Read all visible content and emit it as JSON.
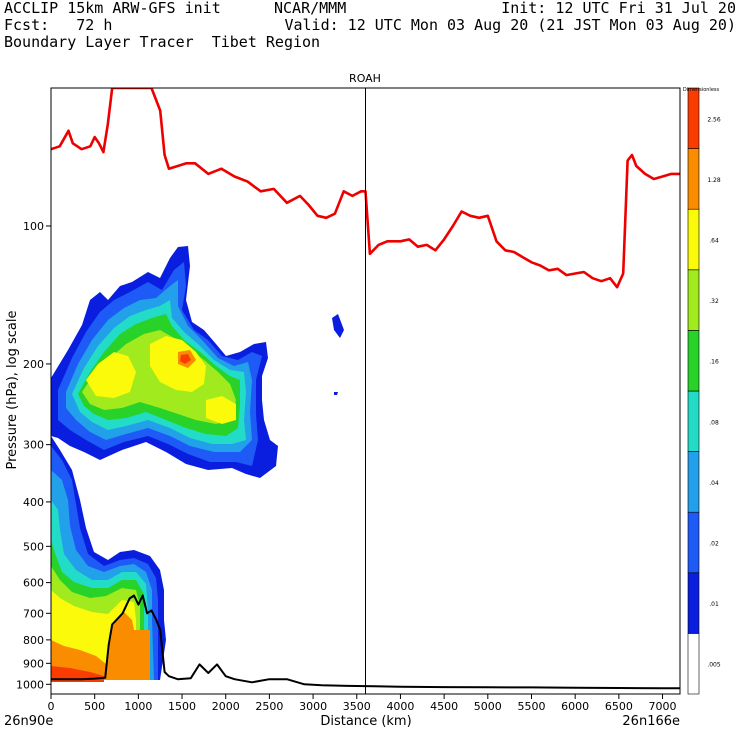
{
  "header": {
    "line1_left": "ACCLIP 15km ARW-GFS init",
    "line1_mid": "NCAR/MMM",
    "line1_right": "Init: 12 UTC Fri 31 Jul 20",
    "line2_left": "Fcst:   72 h",
    "line2_right": "Valid: 12 UTC Mon 03 Aug 20 (21 JST Mon 03 Aug 20)",
    "line3_left": "Boundary Layer Tracer  Tibet Region"
  },
  "chart_data": {
    "type": "heatmap",
    "title": "ROAH",
    "xlabel": "Distance (km)",
    "ylabel": "Pressure (hPa), log scale",
    "xlim": [
      0,
      7200
    ],
    "ylim": [
      1050,
      50
    ],
    "x_ticks": [
      "0",
      "500",
      "1000",
      "1500",
      "2000",
      "2500",
      "3000",
      "3500",
      "4000",
      "4500",
      "5000",
      "5500",
      "6000",
      "6500",
      "7000"
    ],
    "x_tick_values": [
      0,
      500,
      1000,
      1500,
      2000,
      2500,
      3000,
      3500,
      4000,
      4500,
      5000,
      5500,
      6000,
      6500,
      7000
    ],
    "y_ticks": [
      "100",
      "200",
      "300",
      "400",
      "500",
      "600",
      "700",
      "800",
      "900",
      "1000"
    ],
    "y_tick_values": [
      100,
      200,
      300,
      400,
      500,
      600,
      700,
      800,
      900,
      1000
    ],
    "x_start_label": "26n90e",
    "x_end_label": "26n166e",
    "marker_line_x": 3600,
    "colorbar": {
      "title": "Dimensionless",
      "levels": [
        ".005",
        ".01",
        ".02",
        ".04",
        ".08",
        ".16",
        ".32",
        ".64",
        "1.28",
        "2.56"
      ],
      "colors": [
        "#ffffff",
        "#0a1ee0",
        "#1e5af5",
        "#23a0ea",
        "#22dcc8",
        "#28d228",
        "#a0ea1e",
        "#fafa0a",
        "#fa8c00",
        "#fa3c00"
      ]
    },
    "series": [
      {
        "name": "tropopause",
        "color": "#ee0000",
        "x": [
          0,
          100,
          200,
          250,
          350,
          450,
          500,
          550,
          600,
          650,
          700,
          720,
          750,
          790,
          1000,
          1150,
          1250,
          1300,
          1350,
          1450,
          1550,
          1650,
          1800,
          1950,
          2100,
          2250,
          2400,
          2550,
          2700,
          2850,
          2950,
          3050,
          3150,
          3250,
          3350,
          3450,
          3550,
          3600,
          3650,
          3750,
          3850,
          4000,
          4100,
          4200,
          4300,
          4400,
          4500,
          4600,
          4700,
          4800,
          4900,
          5000,
          5100,
          5200,
          5300,
          5400,
          5500,
          5600,
          5700,
          5800,
          5900,
          6000,
          6100,
          6200,
          6300,
          6400,
          6480,
          6550,
          6600,
          6650,
          6700,
          6800,
          6900,
          7000,
          7100,
          7200
        ],
        "y": [
          68,
          67,
          62,
          66,
          68,
          67,
          64,
          66,
          69,
          60,
          50,
          50,
          50,
          50,
          50,
          50,
          56,
          70,
          75,
          74,
          73,
          73,
          77,
          75,
          78,
          80,
          84,
          83,
          89,
          86,
          90,
          95,
          96,
          94,
          84,
          86,
          84,
          84,
          115,
          110,
          108,
          108,
          107,
          111,
          110,
          113,
          107,
          100,
          93,
          95,
          96,
          95,
          108,
          113,
          114,
          117,
          120,
          122,
          125,
          124,
          128,
          127,
          126,
          130,
          132,
          130,
          136,
          127,
          72,
          70,
          74,
          77,
          79,
          78,
          77,
          77
        ]
      },
      {
        "name": "terrain",
        "color": "#000000",
        "x": [
          0,
          350,
          500,
          620,
          660,
          700,
          760,
          820,
          900,
          950,
          1000,
          1050,
          1100,
          1150,
          1200,
          1250,
          1300,
          1350,
          1450,
          1600,
          1700,
          1800,
          1900,
          2000,
          2100,
          2300,
          2500,
          2700,
          2900,
          3100,
          3400,
          3700,
          4000,
          4500,
          5000,
          5500,
          6000,
          6500,
          7000,
          7200
        ],
        "y": [
          975,
          975,
          972,
          968,
          820,
          740,
          720,
          700,
          650,
          640,
          670,
          640,
          700,
          690,
          720,
          760,
          940,
          960,
          975,
          970,
          905,
          945,
          905,
          960,
          975,
          990,
          975,
          975,
          1000,
          1005,
          1008,
          1010,
          1012,
          1014,
          1015,
          1016,
          1018,
          1019,
          1020,
          1020
        ]
      }
    ]
  }
}
